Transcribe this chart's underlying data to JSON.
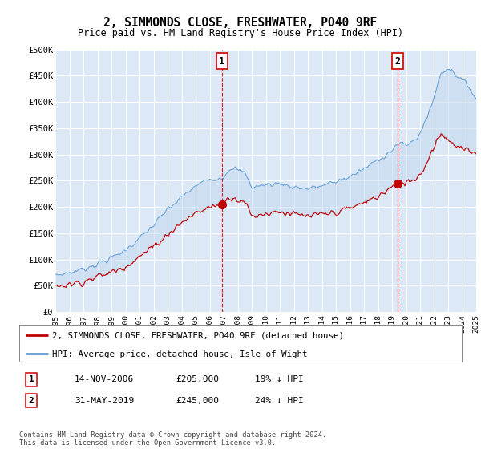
{
  "title": "2, SIMMONDS CLOSE, FRESHWATER, PO40 9RF",
  "subtitle": "Price paid vs. HM Land Registry's House Price Index (HPI)",
  "legend_line1": "2, SIMMONDS CLOSE, FRESHWATER, PO40 9RF (detached house)",
  "legend_line2": "HPI: Average price, detached house, Isle of Wight",
  "transaction1_label": "1",
  "transaction1_date": "14-NOV-2006",
  "transaction1_price": "£205,000",
  "transaction1_hpi": "19% ↓ HPI",
  "transaction2_label": "2",
  "transaction2_date": "31-MAY-2019",
  "transaction2_price": "£245,000",
  "transaction2_hpi": "24% ↓ HPI",
  "footnote": "Contains HM Land Registry data © Crown copyright and database right 2024.\nThis data is licensed under the Open Government Licence v3.0.",
  "xmin": 1995.0,
  "xmax": 2025.0,
  "ymin": 0,
  "ymax": 500000,
  "yticks": [
    0,
    50000,
    100000,
    150000,
    200000,
    250000,
    300000,
    350000,
    400000,
    450000,
    500000
  ],
  "ytick_labels": [
    "£0",
    "£50K",
    "£100K",
    "£150K",
    "£200K",
    "£250K",
    "£300K",
    "£350K",
    "£400K",
    "£450K",
    "£500K"
  ],
  "vline1_x": 2006.87,
  "vline2_x": 2019.41,
  "marker1_y": 205000,
  "marker2_y": 245000,
  "bg_color": "#dce8f5",
  "hpi_color": "#5b9bd5",
  "price_color": "#c00000",
  "vline_color": "#cc0000",
  "fill_color": "#c5d9f1",
  "grid_color": "#ffffff"
}
